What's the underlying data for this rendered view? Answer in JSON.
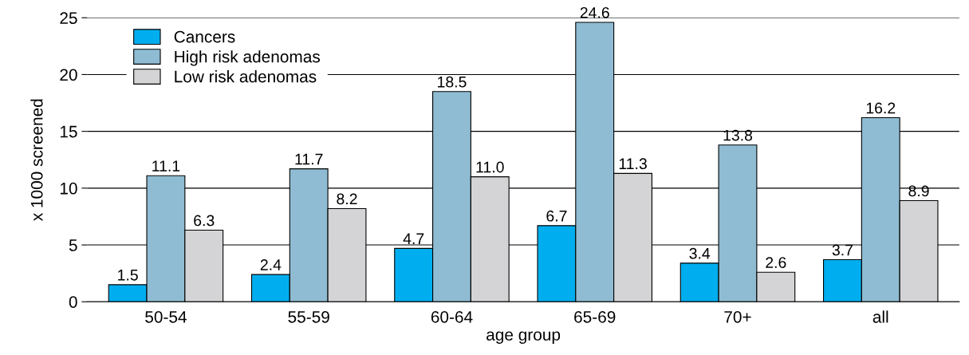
{
  "chart_data": {
    "type": "bar",
    "xlabel": "age group",
    "ylabel": "x 1000 screened",
    "categories": [
      "50-54",
      "55-59",
      "60-64",
      "65-69",
      "70+",
      "all"
    ],
    "series": [
      {
        "name": "Cancers",
        "color": "#00aeef",
        "values": [
          1.5,
          2.4,
          4.7,
          6.7,
          3.4,
          3.7
        ],
        "value_labels": [
          "1.5",
          "2.4",
          "4.7",
          "6.7",
          "3.4",
          "3.7"
        ]
      },
      {
        "name": "High risk adenomas",
        "color": "#8fbcd2",
        "values": [
          11.1,
          11.7,
          18.5,
          24.6,
          13.8,
          16.2
        ],
        "value_labels": [
          "11.1",
          "11.7",
          "18.5",
          "24.6",
          "13.8",
          "16.2"
        ]
      },
      {
        "name": "Low risk adenomas",
        "color": "#d4d4d6",
        "values": [
          6.3,
          8.2,
          11.0,
          11.3,
          2.6,
          8.9
        ],
        "value_labels": [
          "6.3",
          "8.2",
          "11.0",
          "11.3",
          "2.6",
          "8.9"
        ]
      }
    ],
    "ylim": [
      0,
      25
    ],
    "yticks": [
      0,
      5,
      10,
      15,
      20,
      25
    ],
    "grid": "y",
    "legend": "top left"
  }
}
